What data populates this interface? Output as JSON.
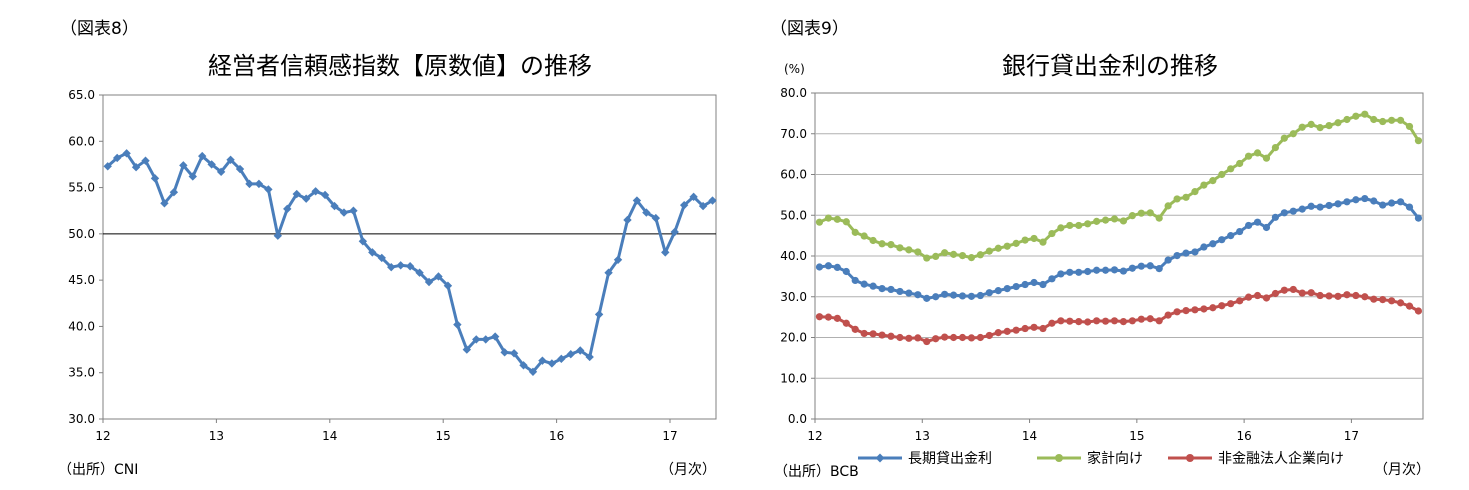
{
  "left": {
    "figure_label": "（図表8）",
    "source": "（出所）CNI",
    "unit_note": "（月次）"
  },
  "right": {
    "figure_label": "（図表9）",
    "source": "（出所）BCB",
    "unit_note": "（月次）",
    "y_unit": "(%)"
  },
  "colors": {
    "blue": "#4a7ebb",
    "green": "#9bbb59",
    "red": "#c0504d",
    "grid": "#b0b0b0",
    "axis": "#808080"
  },
  "chart_data": [
    {
      "type": "line",
      "title": "経営者信頼感指数【原数値】の推移",
      "xlabel": "",
      "ylabel": "",
      "ylim": [
        30,
        65
      ],
      "yticks": [
        "65.0",
        "60.0",
        "55.0",
        "50.0",
        "45.0",
        "40.0",
        "35.0",
        "30.0"
      ],
      "xticks": [
        "12",
        "13",
        "14",
        "15",
        "16",
        "17"
      ],
      "x_start": "2012-01",
      "reference_line": 50,
      "grid": false,
      "series": [
        {
          "values": [
            57.3,
            58.2,
            58.7,
            57.2,
            57.9,
            56.0,
            53.3,
            54.5,
            57.4,
            56.2,
            58.4,
            57.5,
            56.7,
            58.0,
            57.0,
            55.4,
            55.4,
            54.8,
            49.8,
            52.7,
            54.3,
            53.8,
            54.6,
            54.2,
            53.0,
            52.3,
            52.5,
            49.2,
            48.0,
            47.4,
            46.4,
            46.6,
            46.5,
            45.8,
            44.8,
            45.4,
            44.4,
            40.2,
            37.5,
            38.6,
            38.6,
            38.9,
            37.2,
            37.1,
            35.8,
            35.1,
            36.3,
            36.0,
            36.5,
            37.0,
            37.4,
            36.7,
            41.3,
            45.8,
            47.2,
            51.5,
            53.6,
            52.3,
            51.7,
            48.0,
            50.2,
            53.1,
            54.0,
            53.0,
            53.6
          ]
        }
      ]
    },
    {
      "type": "line",
      "title": "銀行貸出金利の推移",
      "xlabel": "",
      "ylabel": "(%)",
      "ylim": [
        0,
        80
      ],
      "yticks": [
        "80.0",
        "70.0",
        "60.0",
        "50.0",
        "40.0",
        "30.0",
        "20.0",
        "10.0",
        "0.0"
      ],
      "xticks": [
        "12",
        "13",
        "14",
        "15",
        "16",
        "17"
      ],
      "x_start": "2012-01",
      "grid": true,
      "legend": "bottom",
      "series": [
        {
          "name": "長期貸出金利",
          "values": [
            37.3,
            37.6,
            37.2,
            36.2,
            34.0,
            33.1,
            32.6,
            32.0,
            31.8,
            31.3,
            30.9,
            30.5,
            29.6,
            30.0,
            30.6,
            30.4,
            30.2,
            30.1,
            30.3,
            31.0,
            31.5,
            32.0,
            32.5,
            33.0,
            33.5,
            33.0,
            34.4,
            35.6,
            36.0,
            36.0,
            36.2,
            36.5,
            36.5,
            36.6,
            36.3,
            37.0,
            37.5,
            37.6,
            36.9,
            39.0,
            40.1,
            40.7,
            41.0,
            42.2,
            43.0,
            44.0,
            45.0,
            46.0,
            47.5,
            48.3,
            47.0,
            49.5,
            50.6,
            51.0,
            51.5,
            52.2,
            52.0,
            52.4,
            52.8,
            53.3,
            53.8,
            54.1,
            53.5,
            52.5,
            53.0,
            53.3,
            52.0,
            49.3
          ]
        },
        {
          "name": "家計向け",
          "values": [
            48.3,
            49.3,
            49.0,
            48.4,
            45.8,
            44.9,
            43.8,
            43.0,
            42.8,
            42.0,
            41.5,
            41.0,
            39.5,
            39.9,
            40.8,
            40.4,
            40.1,
            39.6,
            40.3,
            41.2,
            41.9,
            42.4,
            43.1,
            43.9,
            44.3,
            43.4,
            45.5,
            46.9,
            47.5,
            47.5,
            47.9,
            48.5,
            48.8,
            49.1,
            48.6,
            49.9,
            50.5,
            50.6,
            49.3,
            52.3,
            54.0,
            54.4,
            55.8,
            57.4,
            58.5,
            60.0,
            61.4,
            62.7,
            64.5,
            65.3,
            64.0,
            66.6,
            68.9,
            70.0,
            71.6,
            72.3,
            71.5,
            72.0,
            72.7,
            73.5,
            74.3,
            74.8,
            73.5,
            73.0,
            73.3,
            73.3,
            71.8,
            68.3
          ]
        },
        {
          "name": "非金融法人企業向け",
          "values": [
            25.1,
            25.0,
            24.7,
            23.5,
            22.0,
            21.0,
            20.9,
            20.6,
            20.3,
            20.0,
            19.8,
            19.9,
            19.0,
            19.7,
            20.1,
            20.0,
            20.0,
            19.9,
            20.0,
            20.5,
            21.2,
            21.5,
            21.8,
            22.2,
            22.5,
            22.2,
            23.5,
            24.1,
            24.0,
            23.9,
            23.8,
            24.1,
            24.0,
            24.1,
            23.9,
            24.1,
            24.5,
            24.6,
            24.1,
            25.5,
            26.3,
            26.6,
            26.8,
            27.0,
            27.3,
            27.8,
            28.3,
            29.0,
            29.9,
            30.3,
            29.7,
            30.8,
            31.6,
            31.8,
            30.9,
            31.0,
            30.3,
            30.2,
            30.1,
            30.5,
            30.3,
            30.0,
            29.4,
            29.3,
            29.0,
            28.5,
            27.7,
            26.5
          ]
        }
      ]
    }
  ]
}
